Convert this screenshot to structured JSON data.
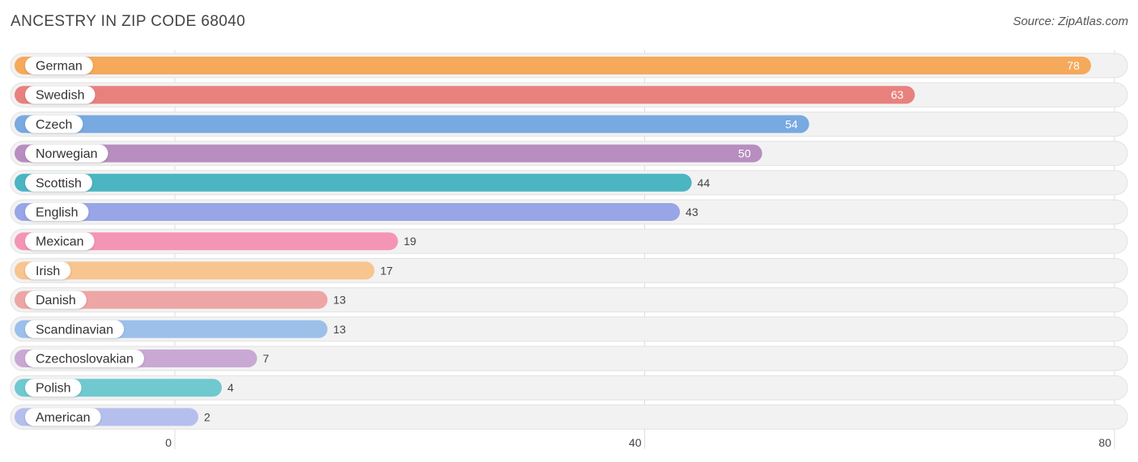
{
  "header": {
    "title": "ANCESTRY IN ZIP CODE 68040",
    "source": "Source: ZipAtlas.com"
  },
  "chart_data": {
    "type": "bar",
    "orientation": "horizontal",
    "title": "ANCESTRY IN ZIP CODE 68040",
    "xlabel": "",
    "ylabel": "",
    "xlim": [
      0,
      80
    ],
    "ticks": [
      0,
      40,
      80
    ],
    "grid": true,
    "categories": [
      "German",
      "Swedish",
      "Czech",
      "Norwegian",
      "Scottish",
      "English",
      "Mexican",
      "Irish",
      "Danish",
      "Scandinavian",
      "Czechoslovakian",
      "Polish",
      "American"
    ],
    "values": [
      78,
      63,
      54,
      50,
      44,
      43,
      19,
      17,
      13,
      13,
      7,
      4,
      2
    ],
    "colors": [
      "#f5a95b",
      "#e8817e",
      "#78a9e0",
      "#b78ebf",
      "#4bb5c1",
      "#98a5e6",
      "#f595b5",
      "#f8c48f",
      "#eea5a5",
      "#9cc0ea",
      "#c9a9d3",
      "#70c9cf",
      "#b5bfed"
    ]
  }
}
